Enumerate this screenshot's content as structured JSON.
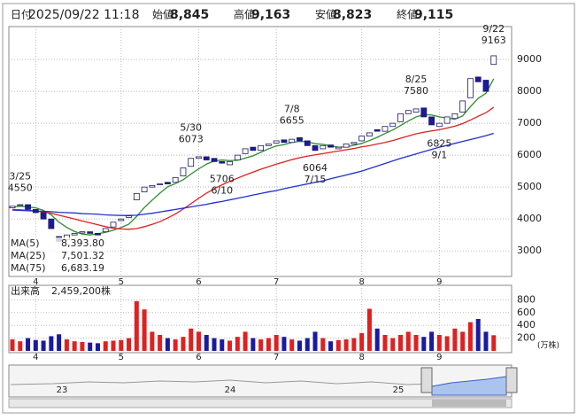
{
  "header": [
    {
      "label": "日付",
      "value": "2025/09/22 11:18",
      "color": "#222"
    },
    {
      "label": "始値",
      "value": "8,845",
      "color": "#222"
    },
    {
      "label": "高値",
      "value": "9,163",
      "color": "#e00000"
    },
    {
      "label": "安値",
      "value": "8,823",
      "color": "#008000"
    },
    {
      "label": "終値",
      "value": "9,115",
      "color": "#222"
    }
  ],
  "chart_data": {
    "type": "candlestick",
    "categories": [
      null,
      null,
      null,
      "4",
      null,
      null,
      null,
      null,
      null,
      null,
      null,
      null,
      null,
      null,
      "5",
      null,
      null,
      null,
      null,
      null,
      null,
      null,
      null,
      null,
      "6",
      null,
      null,
      null,
      null,
      null,
      null,
      null,
      null,
      null,
      "7",
      null,
      null,
      null,
      null,
      null,
      null,
      null,
      null,
      null,
      null,
      "8",
      null,
      null,
      null,
      null,
      null,
      null,
      null,
      null,
      null,
      "9",
      null,
      null,
      null,
      null,
      null,
      null,
      null
    ],
    "open": [
      4350,
      4420,
      4450,
      4300,
      4200,
      4000,
      3450,
      3350,
      3500,
      3560,
      3600,
      3550,
      3600,
      3750,
      3950,
      4050,
      4600,
      4850,
      5000,
      5100,
      5150,
      5150,
      5350,
      5650,
      5900,
      5950,
      5900,
      5800,
      5700,
      5850,
      6050,
      6250,
      6150,
      6300,
      6380,
      6480,
      6400,
      6550,
      6450,
      6300,
      6200,
      6320,
      6200,
      6250,
      6350,
      6450,
      6600,
      6800,
      6750,
      6900,
      7050,
      7300,
      7350,
      7480,
      7200,
      6900,
      7000,
      7150,
      7350,
      7800,
      8450,
      8350,
      8845
    ],
    "close": [
      4400,
      4450,
      4300,
      4200,
      4000,
      3700,
      3300,
      3500,
      3550,
      3600,
      3550,
      3500,
      3700,
      3900,
      4000,
      4100,
      4800,
      5000,
      5050,
      5100,
      5100,
      5300,
      5600,
      5900,
      5950,
      5850,
      5800,
      5750,
      5800,
      6000,
      6200,
      6150,
      6300,
      6350,
      6450,
      6400,
      6500,
      6450,
      6300,
      6150,
      6300,
      6250,
      6250,
      6350,
      6400,
      6600,
      6700,
      6750,
      6900,
      7000,
      7300,
      7400,
      7450,
      7200,
      6950,
      7000,
      7200,
      7300,
      7700,
      8400,
      8300,
      8000,
      9115
    ],
    "up_color": "#ffffff",
    "down_color": "#1a1aa0",
    "series": [
      {
        "name": "MA(5)",
        "latest_label": "8,393.80",
        "color": "#2e8b2e",
        "values": [
          4380,
          4400,
          4380,
          4350,
          4270,
          4130,
          3900,
          3740,
          3610,
          3530,
          3500,
          3540,
          3580,
          3650,
          3730,
          3840,
          4080,
          4360,
          4590,
          4810,
          5010,
          5110,
          5230,
          5410,
          5570,
          5720,
          5820,
          5850,
          5830,
          5840,
          5910,
          5980,
          6090,
          6200,
          6290,
          6330,
          6400,
          6430,
          6420,
          6360,
          6340,
          6290,
          6250,
          6260,
          6310,
          6370,
          6460,
          6560,
          6680,
          6790,
          6930,
          7070,
          7200,
          7270,
          7260,
          7200,
          7160,
          7130,
          7230,
          7520,
          7780,
          7940,
          8393.8
        ]
      },
      {
        "name": "MA(25)",
        "latest_label": "7,501.32",
        "color": "#e02020",
        "values": [
          4300,
          4290,
          4270,
          4250,
          4220,
          4180,
          4120,
          4060,
          4000,
          3940,
          3880,
          3820,
          3760,
          3710,
          3690,
          3680,
          3700,
          3760,
          3830,
          3920,
          4030,
          4160,
          4310,
          4480,
          4650,
          4810,
          4950,
          5070,
          5180,
          5280,
          5380,
          5470,
          5560,
          5640,
          5720,
          5790,
          5860,
          5920,
          5970,
          6010,
          6050,
          6090,
          6130,
          6170,
          6210,
          6260,
          6300,
          6350,
          6400,
          6460,
          6530,
          6600,
          6670,
          6720,
          6760,
          6800,
          6850,
          6910,
          6990,
          7100,
          7220,
          7330,
          7501.32
        ]
      },
      {
        "name": "MA(75)",
        "latest_label": "6,683.19",
        "color": "#2030d0",
        "values": [
          4280,
          4270,
          4260,
          4250,
          4240,
          4230,
          4210,
          4200,
          4190,
          4170,
          4160,
          4150,
          4130,
          4120,
          4110,
          4110,
          4120,
          4150,
          4180,
          4220,
          4260,
          4300,
          4340,
          4380,
          4420,
          4460,
          4510,
          4550,
          4600,
          4650,
          4700,
          4750,
          4800,
          4850,
          4890,
          4950,
          5000,
          5050,
          5100,
          5150,
          5200,
          5260,
          5320,
          5380,
          5440,
          5500,
          5580,
          5660,
          5740,
          5820,
          5900,
          5970,
          6040,
          6110,
          6180,
          6250,
          6310,
          6370,
          6430,
          6490,
          6550,
          6610,
          6683.19
        ]
      }
    ],
    "ylim": [
      2200,
      10030
    ],
    "yticks": [
      3000,
      4000,
      5000,
      6000,
      7000,
      8000,
      9000
    ],
    "grid": true,
    "annotations": [
      {
        "x": 1,
        "date": "3/25",
        "value": 4550,
        "side": "above"
      },
      {
        "x": 23,
        "date": "5/30",
        "value": 6073,
        "side": "above"
      },
      {
        "x": 27,
        "date": "6/10",
        "value": 5706,
        "side": "below"
      },
      {
        "x": 36,
        "date": "7/8",
        "value": 6655,
        "side": "above"
      },
      {
        "x": 39,
        "date": "7/15",
        "value": 6064,
        "side": "below"
      },
      {
        "x": 52,
        "date": "8/25",
        "value": 7580,
        "side": "above"
      },
      {
        "x": 55,
        "date": "9/1",
        "value": 6825,
        "side": "below"
      },
      {
        "x": 62,
        "date": "9/22",
        "value": 9163,
        "side": "above"
      }
    ],
    "volume": {
      "title": "出来高",
      "latest_label": "2,459,200株",
      "unit": "(万株)",
      "up_color": "#e02020",
      "down_color": "#1a1aa0",
      "values": [
        180,
        150,
        200,
        170,
        160,
        230,
        260,
        180,
        150,
        140,
        130,
        120,
        150,
        160,
        170,
        200,
        780,
        650,
        300,
        250,
        200,
        180,
        220,
        350,
        300,
        250,
        200,
        180,
        160,
        220,
        300,
        200,
        180,
        200,
        250,
        220,
        180,
        160,
        200,
        300,
        200,
        150,
        170,
        180,
        200,
        280,
        660,
        350,
        250,
        200,
        250,
        300,
        250,
        220,
        300,
        250,
        230,
        350,
        300,
        450,
        500,
        300,
        245.92
      ],
      "ylim": [
        0,
        1000
      ],
      "yticks": [
        200,
        400,
        600,
        800
      ]
    }
  },
  "navigator": {
    "labels": [
      "23",
      "24",
      "25"
    ]
  }
}
